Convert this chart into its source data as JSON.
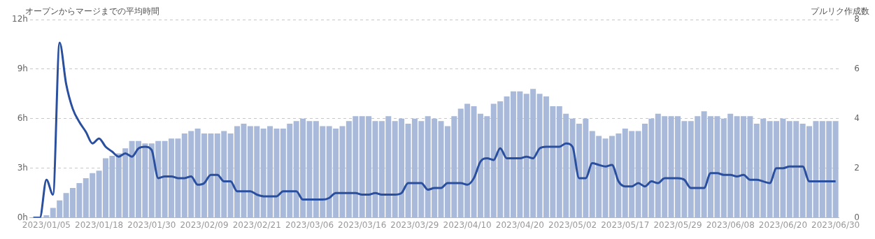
{
  "chart_data": {
    "type": "bar",
    "ylabel": "オープンからマージまでの平均時間",
    "y2label": "プルリク作成数",
    "categories": [
      null,
      null,
      "2023/01/05",
      null,
      null,
      null,
      null,
      null,
      null,
      null,
      "2023/01/18",
      null,
      null,
      null,
      null,
      null,
      null,
      null,
      "2023/01/30",
      null,
      null,
      null,
      null,
      null,
      null,
      null,
      "2023/02/09",
      null,
      null,
      null,
      null,
      null,
      null,
      null,
      "2023/02/21",
      null,
      null,
      null,
      null,
      null,
      null,
      null,
      "2023/03/06",
      null,
      null,
      null,
      null,
      null,
      null,
      null,
      "2023/03/16",
      null,
      null,
      null,
      null,
      null,
      null,
      null,
      "2023/03/29",
      null,
      null,
      null,
      null,
      null,
      null,
      null,
      "2023/04/10",
      null,
      null,
      null,
      null,
      null,
      null,
      null,
      "2023/04/20",
      null,
      null,
      null,
      null,
      null,
      null,
      null,
      "2023/05/02",
      null,
      null,
      null,
      null,
      null,
      null,
      null,
      "2023/05/17",
      null,
      null,
      null,
      null,
      null,
      null,
      null,
      "2023/05/29",
      null,
      null,
      null,
      null,
      null,
      null,
      null,
      "2023/06/08",
      null,
      null,
      null,
      null,
      null,
      null,
      null,
      "2023/06/20",
      null,
      null,
      null,
      null,
      null,
      null,
      null,
      "2023/06/30"
    ],
    "series": [
      {
        "axis": "y2",
        "color": "#a9b9d9",
        "values": [
          0,
          0,
          0.1,
          0.4,
          0.7,
          1.0,
          1.2,
          1.4,
          1.6,
          1.8,
          1.9,
          2.4,
          2.5,
          2.6,
          2.8,
          3.1,
          3.1,
          3.0,
          3.0,
          3.1,
          3.1,
          3.2,
          3.2,
          3.4,
          3.5,
          3.6,
          3.4,
          3.4,
          3.4,
          3.5,
          3.4,
          3.7,
          3.8,
          3.7,
          3.7,
          3.6,
          3.7,
          3.6,
          3.6,
          3.8,
          3.9,
          4.0,
          3.9,
          3.9,
          3.7,
          3.7,
          3.6,
          3.7,
          3.9,
          4.1,
          4.1,
          4.1,
          3.9,
          3.9,
          4.1,
          3.9,
          4.0,
          3.8,
          4.0,
          3.9,
          4.1,
          4.0,
          3.9,
          3.7,
          4.1,
          4.4,
          4.6,
          4.5,
          4.2,
          4.1,
          4.6,
          4.7,
          4.9,
          5.1,
          5.1,
          5.0,
          5.2,
          5.0,
          4.9,
          4.5,
          4.5,
          4.2,
          4.0,
          3.8,
          4.0,
          3.5,
          3.3,
          3.2,
          3.3,
          3.4,
          3.6,
          3.5,
          3.5,
          3.8,
          4.0,
          4.2,
          4.1,
          4.1,
          4.1,
          3.9,
          3.9,
          4.1,
          4.3,
          4.1,
          4.1,
          4.0,
          4.2,
          4.1,
          4.1,
          4.1,
          3.8,
          4.0,
          3.9,
          3.9,
          4.0,
          3.9,
          3.9,
          3.8,
          3.7,
          3.9,
          3.9,
          3.9,
          3.9
        ]
      },
      {
        "type": "line",
        "color": "#2a4f9e",
        "values": [
          0,
          0,
          2.3,
          1.4,
          10.6,
          8.1,
          6.6,
          5.8,
          5.2,
          4.5,
          4.8,
          4.3,
          4.0,
          3.7,
          3.9,
          3.7,
          4.2,
          4.3,
          4.1,
          2.4,
          2.5,
          2.5,
          2.4,
          2.4,
          2.5,
          2.0,
          2.1,
          2.6,
          2.6,
          2.2,
          2.2,
          1.6,
          1.6,
          1.6,
          1.4,
          1.3,
          1.3,
          1.3,
          1.6,
          1.6,
          1.6,
          1.1,
          1.1,
          1.1,
          1.1,
          1.2,
          1.5,
          1.5,
          1.5,
          1.5,
          1.4,
          1.4,
          1.5,
          1.4,
          1.4,
          1.4,
          1.5,
          2.1,
          2.1,
          2.1,
          1.7,
          1.8,
          1.8,
          2.1,
          2.1,
          2.1,
          2.0,
          2.4,
          3.4,
          3.6,
          3.5,
          4.2,
          3.6,
          3.6,
          3.6,
          3.7,
          3.6,
          4.2,
          4.3,
          4.3,
          4.3,
          4.5,
          4.3,
          2.4,
          2.4,
          3.3,
          3.2,
          3.1,
          3.2,
          2.2,
          1.9,
          1.9,
          2.1,
          1.9,
          2.2,
          2.1,
          2.4,
          2.4,
          2.4,
          2.3,
          1.8,
          1.8,
          1.8,
          2.7,
          2.7,
          2.6,
          2.6,
          2.5,
          2.6,
          2.3,
          2.3,
          2.2,
          2.1,
          3.0,
          3.0,
          3.1,
          3.1,
          3.1,
          2.2,
          2.2,
          2.2,
          2.2,
          2.2
        ]
      }
    ],
    "ylim": [
      0,
      12
    ],
    "yticks": [
      {
        "value": 0,
        "label": "0h"
      },
      {
        "value": 3,
        "label": "3h"
      },
      {
        "value": 6,
        "label": "6h"
      },
      {
        "value": 9,
        "label": "9h"
      },
      {
        "value": 12,
        "label": "12h"
      }
    ],
    "y2lim": [
      0,
      8
    ],
    "y2ticks": [
      0,
      2,
      4,
      6,
      8
    ],
    "grid": "y",
    "legend": false,
    "marker": "none",
    "line_style": "solid"
  }
}
